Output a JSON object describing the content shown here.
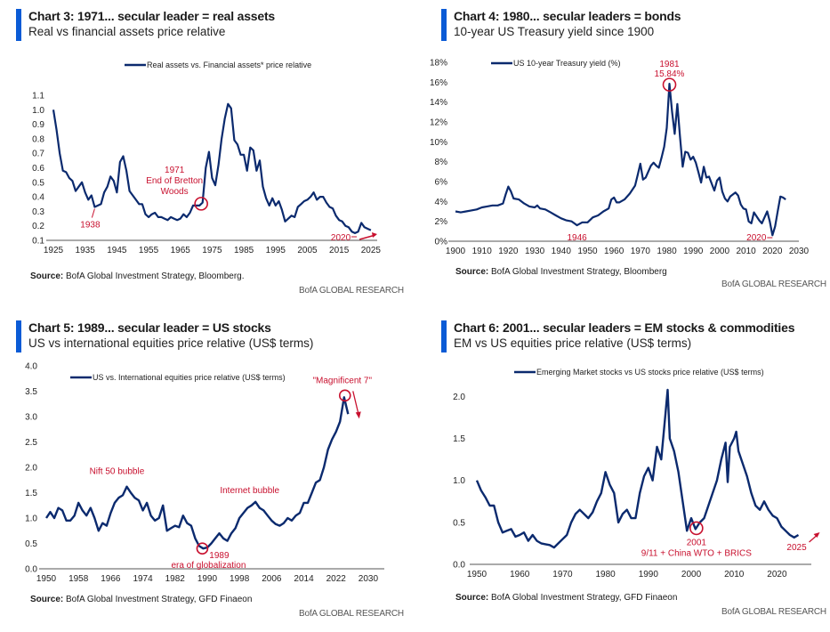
{
  "brand_label": "BofA GLOBAL RESEARCH",
  "colors": {
    "line": "#0b2a6e",
    "annotation": "#c8102e",
    "header_bar": "#0a5bd6",
    "axis": "#777777"
  },
  "source_prefix": "Source:",
  "chart_data": [
    {
      "id": "chart3",
      "type": "line",
      "title": "Chart 3: 1971... secular leader = real assets",
      "subtitle": "Real vs financial assets price relative",
      "legend": "Real assets vs. Financial assets* price relative",
      "legend_position": "top-center",
      "source": "BofA Global Investment Strategy, Bloomberg.",
      "xlabel": "",
      "ylabel": "",
      "xlim": [
        1925,
        2027
      ],
      "ylim": [
        0.1,
        1.1
      ],
      "x_ticks": [
        "1925",
        "1935",
        "1945",
        "1955",
        "1965",
        "1975",
        "1985",
        "1995",
        "2005",
        "2015",
        "2025"
      ],
      "y_ticks": [
        "0.1",
        "0.2",
        "0.3",
        "0.4",
        "0.5",
        "0.6",
        "0.7",
        "0.8",
        "0.9",
        "1.0",
        "1.1"
      ],
      "grid": false,
      "series": [
        {
          "name": "Real assets vs. Financial assets* price relative",
          "x": [
            1925,
            1926,
            1927,
            1928,
            1929,
            1930,
            1931,
            1932,
            1933,
            1934,
            1935,
            1936,
            1937,
            1938,
            1939,
            1940,
            1941,
            1942,
            1943,
            1944,
            1945,
            1946,
            1947,
            1948,
            1949,
            1950,
            1951,
            1952,
            1953,
            1954,
            1955,
            1956,
            1957,
            1958,
            1959,
            1960,
            1961,
            1962,
            1963,
            1964,
            1965,
            1966,
            1967,
            1968,
            1969,
            1970,
            1971,
            1972,
            1973,
            1974,
            1975,
            1976,
            1977,
            1978,
            1979,
            1980,
            1981,
            1982,
            1983,
            1984,
            1985,
            1986,
            1987,
            1988,
            1989,
            1990,
            1991,
            1992,
            1993,
            1994,
            1995,
            1996,
            1997,
            1998,
            1999,
            2000,
            2001,
            2002,
            2003,
            2004,
            2005,
            2006,
            2007,
            2008,
            2009,
            2010,
            2011,
            2012,
            2013,
            2014,
            2015,
            2016,
            2017,
            2018,
            2019,
            2020,
            2021,
            2022,
            2023,
            2024,
            2025
          ],
          "values": [
            1.0,
            0.86,
            0.7,
            0.58,
            0.57,
            0.53,
            0.51,
            0.44,
            0.47,
            0.5,
            0.43,
            0.38,
            0.41,
            0.33,
            0.34,
            0.35,
            0.43,
            0.47,
            0.54,
            0.51,
            0.43,
            0.64,
            0.68,
            0.58,
            0.44,
            0.41,
            0.38,
            0.35,
            0.35,
            0.28,
            0.26,
            0.28,
            0.29,
            0.26,
            0.26,
            0.25,
            0.24,
            0.26,
            0.25,
            0.24,
            0.25,
            0.28,
            0.26,
            0.29,
            0.34,
            0.34,
            0.34,
            0.36,
            0.6,
            0.71,
            0.53,
            0.48,
            0.62,
            0.8,
            0.94,
            1.04,
            1.01,
            0.79,
            0.76,
            0.69,
            0.69,
            0.58,
            0.74,
            0.72,
            0.58,
            0.65,
            0.47,
            0.39,
            0.34,
            0.39,
            0.34,
            0.37,
            0.31,
            0.23,
            0.25,
            0.27,
            0.26,
            0.33,
            0.35,
            0.37,
            0.38,
            0.4,
            0.43,
            0.38,
            0.4,
            0.4,
            0.36,
            0.33,
            0.32,
            0.27,
            0.24,
            0.23,
            0.2,
            0.19,
            0.16,
            0.15,
            0.16,
            0.22,
            0.19,
            0.18,
            0.17
          ]
        }
      ],
      "annotations": [
        {
          "text": "1938",
          "x": 1938,
          "y": 0.33
        },
        {
          "text": "1971",
          "text2": "End of Bretton",
          "text3": "Woods",
          "x": 1971,
          "y": 0.34,
          "circle": true
        },
        {
          "text": "2020",
          "x": 2020,
          "y": 0.15,
          "arrow": "right"
        }
      ]
    },
    {
      "id": "chart4",
      "type": "line",
      "title": "Chart 4: 1980... secular leaders = bonds",
      "subtitle": "10-year US Treasury yield since 1900",
      "legend": "US 10-year Treasury yield (%)",
      "legend_position": "top-left",
      "source": "BofA Global Investment Strategy, Bloomberg",
      "xlabel": "",
      "ylabel": "",
      "xlim": [
        1900,
        2030
      ],
      "ylim": [
        0,
        18
      ],
      "x_ticks": [
        "1900",
        "1910",
        "1920",
        "1930",
        "1940",
        "1950",
        "1960",
        "1970",
        "1980",
        "1990",
        "2000",
        "2010",
        "2020",
        "2030"
      ],
      "y_ticks": [
        "0%",
        "2%",
        "4%",
        "6%",
        "8%",
        "10%",
        "12%",
        "14%",
        "16%",
        "18%"
      ],
      "grid": false,
      "series": [
        {
          "name": "US 10-year Treasury yield (%)",
          "x": [
            1900,
            1902,
            1904,
            1906,
            1908,
            1910,
            1912,
            1914,
            1916,
            1918,
            1919,
            1920,
            1921,
            1922,
            1924,
            1926,
            1928,
            1930,
            1931,
            1932,
            1934,
            1936,
            1938,
            1940,
            1942,
            1944,
            1945,
            1946,
            1948,
            1950,
            1952,
            1954,
            1956,
            1958,
            1959,
            1960,
            1961,
            1962,
            1964,
            1966,
            1968,
            1969,
            1970,
            1971,
            1972,
            1974,
            1975,
            1976,
            1977,
            1978,
            1979,
            1980,
            1981,
            1982,
            1983,
            1984,
            1985,
            1986,
            1987,
            1988,
            1989,
            1990,
            1991,
            1992,
            1993,
            1994,
            1995,
            1996,
            1998,
            1999,
            2000,
            2001,
            2002,
            2003,
            2004,
            2006,
            2007,
            2008,
            2009,
            2010,
            2011,
            2012,
            2013,
            2014,
            2015,
            2016,
            2017,
            2018,
            2019,
            2020,
            2021,
            2022,
            2023,
            2024,
            2025
          ],
          "values": [
            3.0,
            2.9,
            3.0,
            3.1,
            3.2,
            3.4,
            3.5,
            3.6,
            3.6,
            3.8,
            4.7,
            5.5,
            5.0,
            4.3,
            4.2,
            3.8,
            3.5,
            3.4,
            3.6,
            3.3,
            3.2,
            2.9,
            2.6,
            2.3,
            2.1,
            2.0,
            1.8,
            1.6,
            1.9,
            1.9,
            2.4,
            2.6,
            3.0,
            3.3,
            4.2,
            4.4,
            3.9,
            3.9,
            4.2,
            4.8,
            5.6,
            6.7,
            7.8,
            6.2,
            6.4,
            7.6,
            7.9,
            7.6,
            7.4,
            8.4,
            9.5,
            11.4,
            15.84,
            13.0,
            10.8,
            13.8,
            10.5,
            7.5,
            9.0,
            8.9,
            8.2,
            8.5,
            7.9,
            6.9,
            5.9,
            7.5,
            6.4,
            6.5,
            5.1,
            6.1,
            6.4,
            5.0,
            4.3,
            4.0,
            4.5,
            4.9,
            4.6,
            3.7,
            3.3,
            3.2,
            2.0,
            1.8,
            2.9,
            2.5,
            2.1,
            1.8,
            2.4,
            3.0,
            2.0,
            0.6,
            1.5,
            3.0,
            4.5,
            4.4,
            4.2
          ]
        }
      ],
      "annotations": [
        {
          "text": "1981",
          "text2": "15.84%",
          "x": 1981,
          "y": 15.84,
          "circle": true
        },
        {
          "text": "1946",
          "x": 1946,
          "y": 1.6
        },
        {
          "text": "2020",
          "x": 2020,
          "y": 0.6
        }
      ]
    },
    {
      "id": "chart5",
      "type": "line",
      "title": "Chart 5: 1989... secular leader = US stocks",
      "subtitle": "US vs international equities price relative (US$ terms)",
      "legend": "US vs. International equities price relative (US$ terms)",
      "legend_position": "top-left",
      "source": "BofA Global Investment Strategy, GFD Finaeon",
      "xlabel": "",
      "ylabel": "",
      "xlim": [
        1950,
        2034
      ],
      "ylim": [
        0,
        4
      ],
      "x_ticks": [
        "1950",
        "1958",
        "1966",
        "1974",
        "1982",
        "1990",
        "1998",
        "2006",
        "2014",
        "2022",
        "2030"
      ],
      "y_ticks": [
        "0.0",
        "0.5",
        "1.0",
        "1.5",
        "2.0",
        "2.5",
        "3.0",
        "3.5",
        "4.0"
      ],
      "grid": false,
      "series": [
        {
          "name": "US vs. International equities price relative (US$ terms)",
          "x": [
            1950,
            1951,
            1952,
            1953,
            1954,
            1955,
            1956,
            1957,
            1958,
            1959,
            1960,
            1961,
            1962,
            1963,
            1964,
            1965,
            1966,
            1967,
            1968,
            1969,
            1970,
            1971,
            1972,
            1973,
            1974,
            1975,
            1976,
            1977,
            1978,
            1979,
            1980,
            1981,
            1982,
            1983,
            1984,
            1985,
            1986,
            1987,
            1988,
            1989,
            1990,
            1991,
            1992,
            1993,
            1994,
            1995,
            1996,
            1997,
            1998,
            1999,
            2000,
            2001,
            2002,
            2003,
            2004,
            2005,
            2006,
            2007,
            2008,
            2009,
            2010,
            2011,
            2012,
            2013,
            2014,
            2015,
            2016,
            2017,
            2018,
            2019,
            2020,
            2021,
            2022,
            2023,
            2024,
            2025
          ],
          "values": [
            1.0,
            1.12,
            1.0,
            1.2,
            1.15,
            0.95,
            0.95,
            1.05,
            1.3,
            1.15,
            1.05,
            1.2,
            1.0,
            0.75,
            0.9,
            0.85,
            1.1,
            1.3,
            1.4,
            1.45,
            1.62,
            1.5,
            1.4,
            1.35,
            1.15,
            1.3,
            1.05,
            0.95,
            1.0,
            1.25,
            0.75,
            0.8,
            0.85,
            0.82,
            1.05,
            0.9,
            0.85,
            0.6,
            0.45,
            0.4,
            0.42,
            0.5,
            0.6,
            0.7,
            0.6,
            0.55,
            0.7,
            0.8,
            1.0,
            1.1,
            1.2,
            1.25,
            1.32,
            1.2,
            1.15,
            1.05,
            0.95,
            0.88,
            0.85,
            0.9,
            1.0,
            0.95,
            1.05,
            1.1,
            1.3,
            1.3,
            1.5,
            1.7,
            1.75,
            2.0,
            2.35,
            2.55,
            2.7,
            2.9,
            3.38,
            3.05
          ]
        }
      ],
      "annotations": [
        {
          "text": "Nift 50 bubble",
          "x": 1968,
          "y": 1.62
        },
        {
          "text": "Internet bubble",
          "x": 2001,
          "y": 1.32
        },
        {
          "text": "1989",
          "text2": "era of globalization",
          "x": 1989,
          "y": 0.4,
          "circle": true
        },
        {
          "text": "\"Magnificent 7\"",
          "x": 2024,
          "y": 3.38,
          "circle": true,
          "arrow": "down"
        }
      ]
    },
    {
      "id": "chart6",
      "type": "line",
      "title": "Chart 6: 2001... secular leaders = EM stocks & commodities",
      "subtitle": "EM vs US equities price relative (US$ terms)",
      "legend": "Emerging Market stocks vs US stocks price relative (US$ terms)",
      "legend_position": "top-center",
      "source": "BofA Global Investment Strategy, GFD Finaeon",
      "xlabel": "",
      "ylabel": "",
      "xlim": [
        1950,
        2028
      ],
      "ylim": [
        0,
        2.1
      ],
      "x_ticks": [
        "1950",
        "1960",
        "1970",
        "1980",
        "1990",
        "2000",
        "2010",
        "2020"
      ],
      "y_ticks": [
        "0.0",
        "0.5",
        "1.0",
        "1.5",
        "2.0"
      ],
      "grid": false,
      "series": [
        {
          "name": "Emerging Market stocks vs US stocks price relative (US$ terms)",
          "x": [
            1950,
            1951,
            1952,
            1953,
            1954,
            1955,
            1956,
            1957,
            1958,
            1959,
            1960,
            1961,
            1962,
            1963,
            1964,
            1965,
            1966,
            1967,
            1968,
            1969,
            1970,
            1971,
            1972,
            1973,
            1974,
            1975,
            1976,
            1977,
            1978,
            1979,
            1980,
            1981,
            1982,
            1983,
            1984,
            1985,
            1986,
            1987,
            1988,
            1989,
            1990,
            1991,
            1992,
            1993,
            1994,
            1994.5,
            1995,
            1996,
            1997,
            1998,
            1999,
            2000,
            2001,
            2002,
            2003,
            2004,
            2005,
            2006,
            2007,
            2008,
            2008.5,
            2009,
            2010,
            2010.5,
            2011,
            2012,
            2013,
            2014,
            2015,
            2016,
            2017,
            2018,
            2019,
            2020,
            2021,
            2022,
            2023,
            2024,
            2025
          ],
          "values": [
            1.0,
            0.88,
            0.8,
            0.7,
            0.7,
            0.5,
            0.38,
            0.4,
            0.42,
            0.33,
            0.35,
            0.38,
            0.28,
            0.35,
            0.28,
            0.25,
            0.24,
            0.23,
            0.2,
            0.25,
            0.3,
            0.35,
            0.5,
            0.6,
            0.65,
            0.6,
            0.55,
            0.62,
            0.75,
            0.85,
            1.1,
            0.95,
            0.85,
            0.5,
            0.6,
            0.65,
            0.55,
            0.55,
            0.85,
            1.05,
            1.15,
            1.0,
            1.4,
            1.25,
            1.8,
            2.08,
            1.5,
            1.35,
            1.1,
            0.75,
            0.4,
            0.55,
            0.42,
            0.5,
            0.55,
            0.7,
            0.85,
            1.0,
            1.25,
            1.45,
            0.98,
            1.4,
            1.5,
            1.58,
            1.35,
            1.2,
            1.05,
            0.85,
            0.7,
            0.65,
            0.75,
            0.65,
            0.58,
            0.55,
            0.45,
            0.4,
            0.35,
            0.32,
            0.35
          ]
        }
      ],
      "annotations": [
        {
          "text": "2001",
          "text2": "9/11 + China WTO + BRICS",
          "x": 2001,
          "y": 0.42,
          "circle": true
        },
        {
          "text": "2025",
          "x": 2025,
          "y": 0.35,
          "arrow": "up-right"
        }
      ]
    }
  ]
}
